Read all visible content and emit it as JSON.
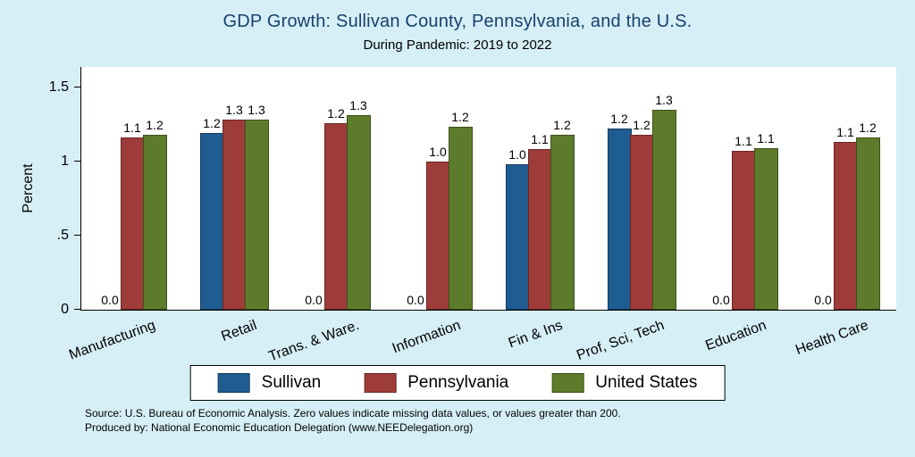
{
  "chart_data": {
    "type": "bar",
    "title": "GDP Growth: Sullivan County, Pennsylvania, and the U.S.",
    "subtitle": "During Pandemic: 2019 to 2022",
    "ylabel": "Percent",
    "ylim": [
      0,
      1.64
    ],
    "yticks": [
      0,
      0.5,
      1,
      1.5
    ],
    "ytick_labels": [
      "0",
      ".5",
      "1",
      "1.5"
    ],
    "grid": false,
    "legend_position": "bottom",
    "categories": [
      "Manufacturing",
      "Retail",
      "Trans. & Ware.",
      "Information",
      "Fin & Ins",
      "Prof, Sci, Tech",
      "Education",
      "Health Care"
    ],
    "series": [
      {
        "name": "Sullivan",
        "color": "#1f5c92",
        "values": [
          0,
          1.18,
          0,
          0,
          0.97,
          1.21,
          0,
          0
        ],
        "labels": [
          "0.0",
          "1.2",
          "0.0",
          "0.0",
          "1.0",
          "1.2",
          "0.0",
          "0.0"
        ]
      },
      {
        "name": "Pennsylvania",
        "color": "#9e3c3a",
        "values": [
          1.15,
          1.27,
          1.25,
          0.99,
          1.07,
          1.17,
          1.06,
          1.12
        ],
        "labels": [
          "1.1",
          "1.3",
          "1.2",
          "1.0",
          "1.1",
          "1.2",
          "1.1",
          "1.1"
        ]
      },
      {
        "name": "United States",
        "color": "#5d7c2b",
        "values": [
          1.17,
          1.27,
          1.3,
          1.22,
          1.17,
          1.34,
          1.08,
          1.15
        ],
        "labels": [
          "1.2",
          "1.3",
          "1.3",
          "1.2",
          "1.2",
          "1.3",
          "1.1",
          "1.2"
        ]
      }
    ],
    "colors": {
      "background": "#d6eff7",
      "plot_background": "#ffffff",
      "title_color": "#17406d",
      "axis_color": "#000000"
    }
  },
  "notes": {
    "source": "Source: U.S. Bureau of Economic Analysis. Zero values indicate missing data values, or values greater than 200.",
    "producer": "Produced by: National Economic Education Delegation (www.NEEDelegation.org)"
  }
}
